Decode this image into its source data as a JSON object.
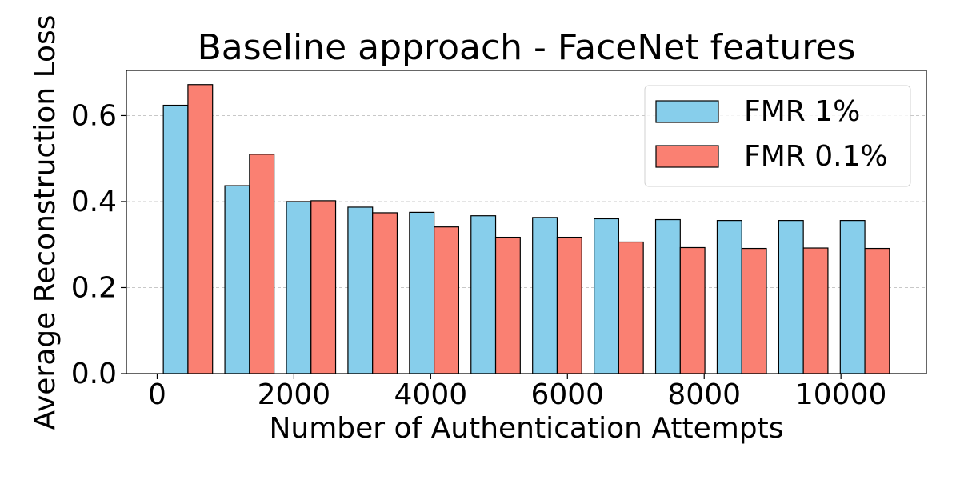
{
  "chart_data": {
    "type": "bar",
    "title": "Baseline approach - FaceNet features",
    "x_label": "Number of Authentication Attempts",
    "y_label": "Average Reconstruction Loss",
    "x": [
      450,
      1350,
      2250,
      3150,
      4050,
      4950,
      5850,
      6750,
      7650,
      8550,
      9450,
      10350
    ],
    "series": [
      {
        "name": "FMR 1%",
        "color": "#87ceeb",
        "values": [
          0.624,
          0.437,
          0.4,
          0.387,
          0.375,
          0.367,
          0.363,
          0.36,
          0.358,
          0.356,
          0.356,
          0.356
        ]
      },
      {
        "name": "FMR 0.1%",
        "color": "#fa8072",
        "values": [
          0.672,
          0.51,
          0.402,
          0.374,
          0.341,
          0.317,
          0.317,
          0.306,
          0.293,
          0.291,
          0.292,
          0.291
        ]
      }
    ],
    "xlim": [
      -450,
      11250
    ],
    "xticks": [
      0,
      2000,
      4000,
      6000,
      8000,
      10000
    ],
    "ylim": [
      0,
      0.705
    ],
    "yticks": [
      {
        "value": 0,
        "label": "0.0"
      },
      0.2,
      0.4,
      0.6
    ],
    "grid": true,
    "legend": "upper-right"
  }
}
